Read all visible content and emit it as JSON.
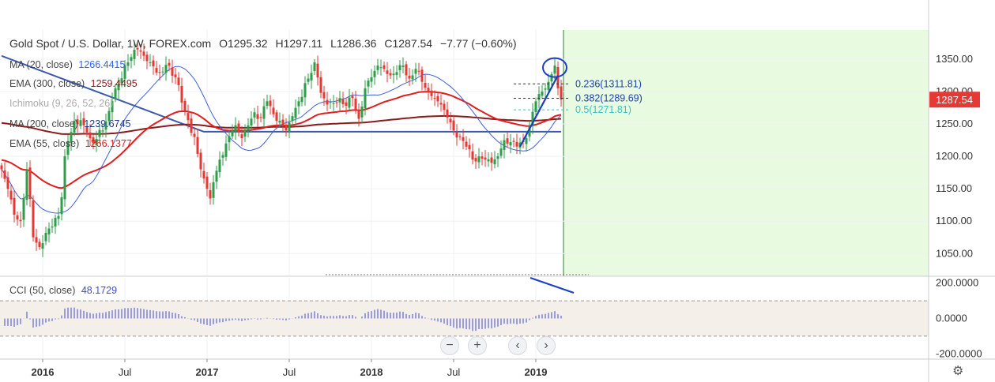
{
  "header": {
    "symbol": "Gold Spot / U.S. Dollar, 1W, FOREX.com",
    "open": "O1295.32",
    "high": "H1297.11",
    "low": "L1286.36",
    "close": "C1287.54",
    "change": "−7.77 (−0.60%)"
  },
  "indicators": [
    {
      "label": "MA (20, close)",
      "value": "1266.4415",
      "color": "#2962ff"
    },
    {
      "label": "EMA (300, close)",
      "value": "1259.4495",
      "color": "#8b1a1a"
    },
    {
      "label": "Ichimoku (9, 26, 52, 26)",
      "value": "",
      "color": "#aaaaaa"
    },
    {
      "label": "MA (200, close)",
      "value": "1239.6745",
      "color": "#1e3a8a"
    },
    {
      "label": "EMA (55, close)",
      "value": "1266.1377",
      "color": "#e11d1d"
    }
  ],
  "cci": {
    "label": "CCI (50, close)",
    "value": "48.1729",
    "levels": [
      -100,
      100
    ]
  },
  "price_tag": {
    "value": "1287.54",
    "color": "#e53935"
  },
  "fib": [
    {
      "label": "0.236(1311.81)",
      "price": 1311.81,
      "color": "#1e3fb0"
    },
    {
      "label": "0.382(1289.69)",
      "price": 1289.69,
      "color": "#1e3fb0"
    },
    {
      "label": "0.5(1271.81)",
      "price": 1271.81,
      "color": "#35c4c4"
    }
  ],
  "nav": {
    "zoom_out": "−",
    "zoom_in": "+",
    "back": "‹",
    "forward": "›"
  },
  "chart_data": {
    "type": "candlestick",
    "title": "Gold Spot / U.S. Dollar, 1W, FOREX.com",
    "y_ticks": [
      "1350.00",
      "1300.00",
      "1250.00",
      "1200.00",
      "1150.00",
      "1100.00",
      "1050.00"
    ],
    "y_tick_values": [
      1350,
      1300,
      1250,
      1200,
      1150,
      1100,
      1050
    ],
    "ylim": [
      1015,
      1395
    ],
    "cci_ticks": [
      "200.0000",
      "0.0000",
      "-200.0000"
    ],
    "cci_tick_values": [
      200,
      0,
      -200
    ],
    "cci_ylim": [
      -230,
      230
    ],
    "x_labels": [
      "2016",
      "Jul",
      "2017",
      "Jul",
      "2018",
      "Jul",
      "2019"
    ],
    "x_label_weeks": [
      13,
      39,
      65,
      91,
      117,
      143,
      169
    ],
    "bars": 178,
    "anchors": [
      {
        "w": 0,
        "p": 1180
      },
      {
        "w": 2,
        "p": 1150
      },
      {
        "w": 4,
        "p": 1110
      },
      {
        "w": 6,
        "p": 1100
      },
      {
        "w": 8,
        "p": 1180
      },
      {
        "w": 10,
        "p": 1075
      },
      {
        "w": 12,
        "p": 1060
      },
      {
        "w": 14,
        "p": 1082
      },
      {
        "w": 18,
        "p": 1108
      },
      {
        "w": 21,
        "p": 1222
      },
      {
        "w": 23,
        "p": 1255
      },
      {
        "w": 26,
        "p": 1248
      },
      {
        "w": 29,
        "p": 1220
      },
      {
        "w": 32,
        "p": 1240
      },
      {
        "w": 34,
        "p": 1270
      },
      {
        "w": 36,
        "p": 1305
      },
      {
        "w": 40,
        "p": 1345
      },
      {
        "w": 43,
        "p": 1365
      },
      {
        "w": 47,
        "p": 1345
      },
      {
        "w": 50,
        "p": 1330
      },
      {
        "w": 53,
        "p": 1340
      },
      {
        "w": 55,
        "p": 1322
      },
      {
        "w": 58,
        "p": 1270
      },
      {
        "w": 61,
        "p": 1230
      },
      {
        "w": 63,
        "p": 1180
      },
      {
        "w": 65,
        "p": 1150
      },
      {
        "w": 66,
        "p": 1135
      },
      {
        "w": 67,
        "p": 1160
      },
      {
        "w": 69,
        "p": 1195
      },
      {
        "w": 71,
        "p": 1220
      },
      {
        "w": 74,
        "p": 1248
      },
      {
        "w": 76,
        "p": 1228
      },
      {
        "w": 78,
        "p": 1248
      },
      {
        "w": 80,
        "p": 1268
      },
      {
        "w": 82,
        "p": 1260
      },
      {
        "w": 84,
        "p": 1285
      },
      {
        "w": 86,
        "p": 1265
      },
      {
        "w": 88,
        "p": 1255
      },
      {
        "w": 90,
        "p": 1240
      },
      {
        "w": 92,
        "p": 1262
      },
      {
        "w": 94,
        "p": 1285
      },
      {
        "w": 97,
        "p": 1320
      },
      {
        "w": 99,
        "p": 1345
      },
      {
        "w": 101,
        "p": 1298
      },
      {
        "w": 103,
        "p": 1280
      },
      {
        "w": 105,
        "p": 1282
      },
      {
        "w": 107,
        "p": 1290
      },
      {
        "w": 109,
        "p": 1278
      },
      {
        "w": 111,
        "p": 1290
      },
      {
        "w": 113,
        "p": 1258
      },
      {
        "w": 115,
        "p": 1305
      },
      {
        "w": 117,
        "p": 1322
      },
      {
        "w": 119,
        "p": 1340
      },
      {
        "w": 121,
        "p": 1335
      },
      {
        "w": 123,
        "p": 1325
      },
      {
        "w": 125,
        "p": 1330
      },
      {
        "w": 127,
        "p": 1340
      },
      {
        "w": 129,
        "p": 1320
      },
      {
        "w": 131,
        "p": 1335
      },
      {
        "w": 133,
        "p": 1315
      },
      {
        "w": 135,
        "p": 1300
      },
      {
        "w": 137,
        "p": 1290
      },
      {
        "w": 139,
        "p": 1280
      },
      {
        "w": 141,
        "p": 1260
      },
      {
        "w": 143,
        "p": 1240
      },
      {
        "w": 145,
        "p": 1230
      },
      {
        "w": 147,
        "p": 1215
      },
      {
        "w": 149,
        "p": 1195
      },
      {
        "w": 151,
        "p": 1200
      },
      {
        "w": 153,
        "p": 1195
      },
      {
        "w": 155,
        "p": 1190
      },
      {
        "w": 157,
        "p": 1200
      },
      {
        "w": 159,
        "p": 1225
      },
      {
        "w": 161,
        "p": 1222
      },
      {
        "w": 163,
        "p": 1215
      },
      {
        "w": 165,
        "p": 1222
      },
      {
        "w": 167,
        "p": 1248
      },
      {
        "w": 169,
        "p": 1285
      },
      {
        "w": 171,
        "p": 1300
      },
      {
        "w": 173,
        "p": 1315
      },
      {
        "w": 175,
        "p": 1340
      },
      {
        "w": 176,
        "p": 1305
      },
      {
        "w": 177,
        "p": 1287.54
      }
    ]
  },
  "colors": {
    "up": "#2e9e4a",
    "down": "#e53935",
    "cloud": "#e8fbe0",
    "ma20": "#3f5fd8",
    "ema55": "#e11d1d",
    "ema300": "#8b1a1a",
    "ma200": "#3d59ad",
    "cci": "#3f4bd0",
    "annot": "#1a3ec8"
  }
}
